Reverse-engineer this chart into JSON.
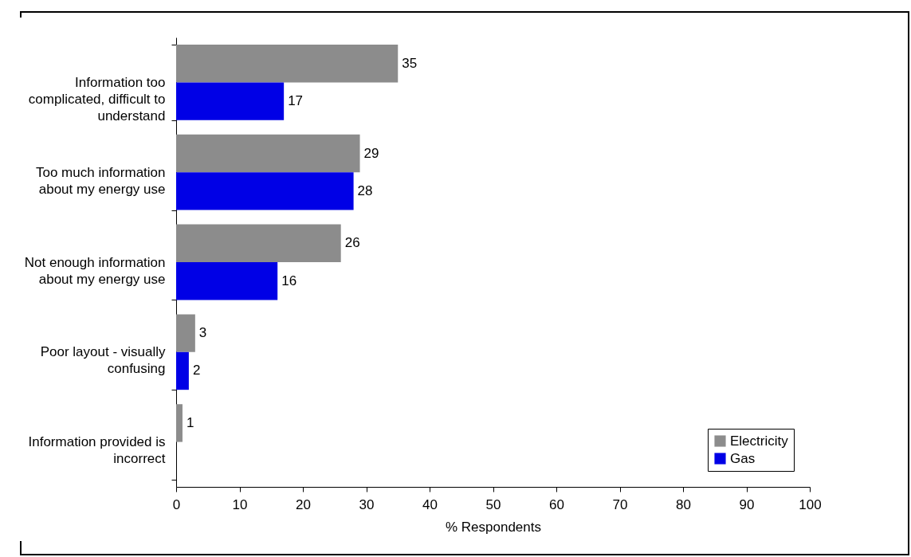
{
  "chart_data": {
    "type": "bar",
    "orientation": "horizontal",
    "xlabel": "% Respondents",
    "categories": [
      "Information too complicated, difficult to understand",
      "Too much information about my energy use",
      "Not enough information about my energy use",
      "Poor layout - visually confusing",
      "Information provided is incorrect"
    ],
    "series": [
      {
        "name": "Electricity",
        "color": "#8c8c8c",
        "values": [
          35,
          29,
          26,
          3,
          1
        ]
      },
      {
        "name": "Gas",
        "color": "#0000e6",
        "values": [
          17,
          28,
          16,
          2,
          null
        ]
      }
    ],
    "xlim": [
      0,
      100
    ],
    "xticks": [
      0,
      10,
      20,
      30,
      40,
      50,
      60,
      70,
      80,
      90,
      100
    ],
    "data_labels": true,
    "legend": "bottom right",
    "grid": false
  }
}
